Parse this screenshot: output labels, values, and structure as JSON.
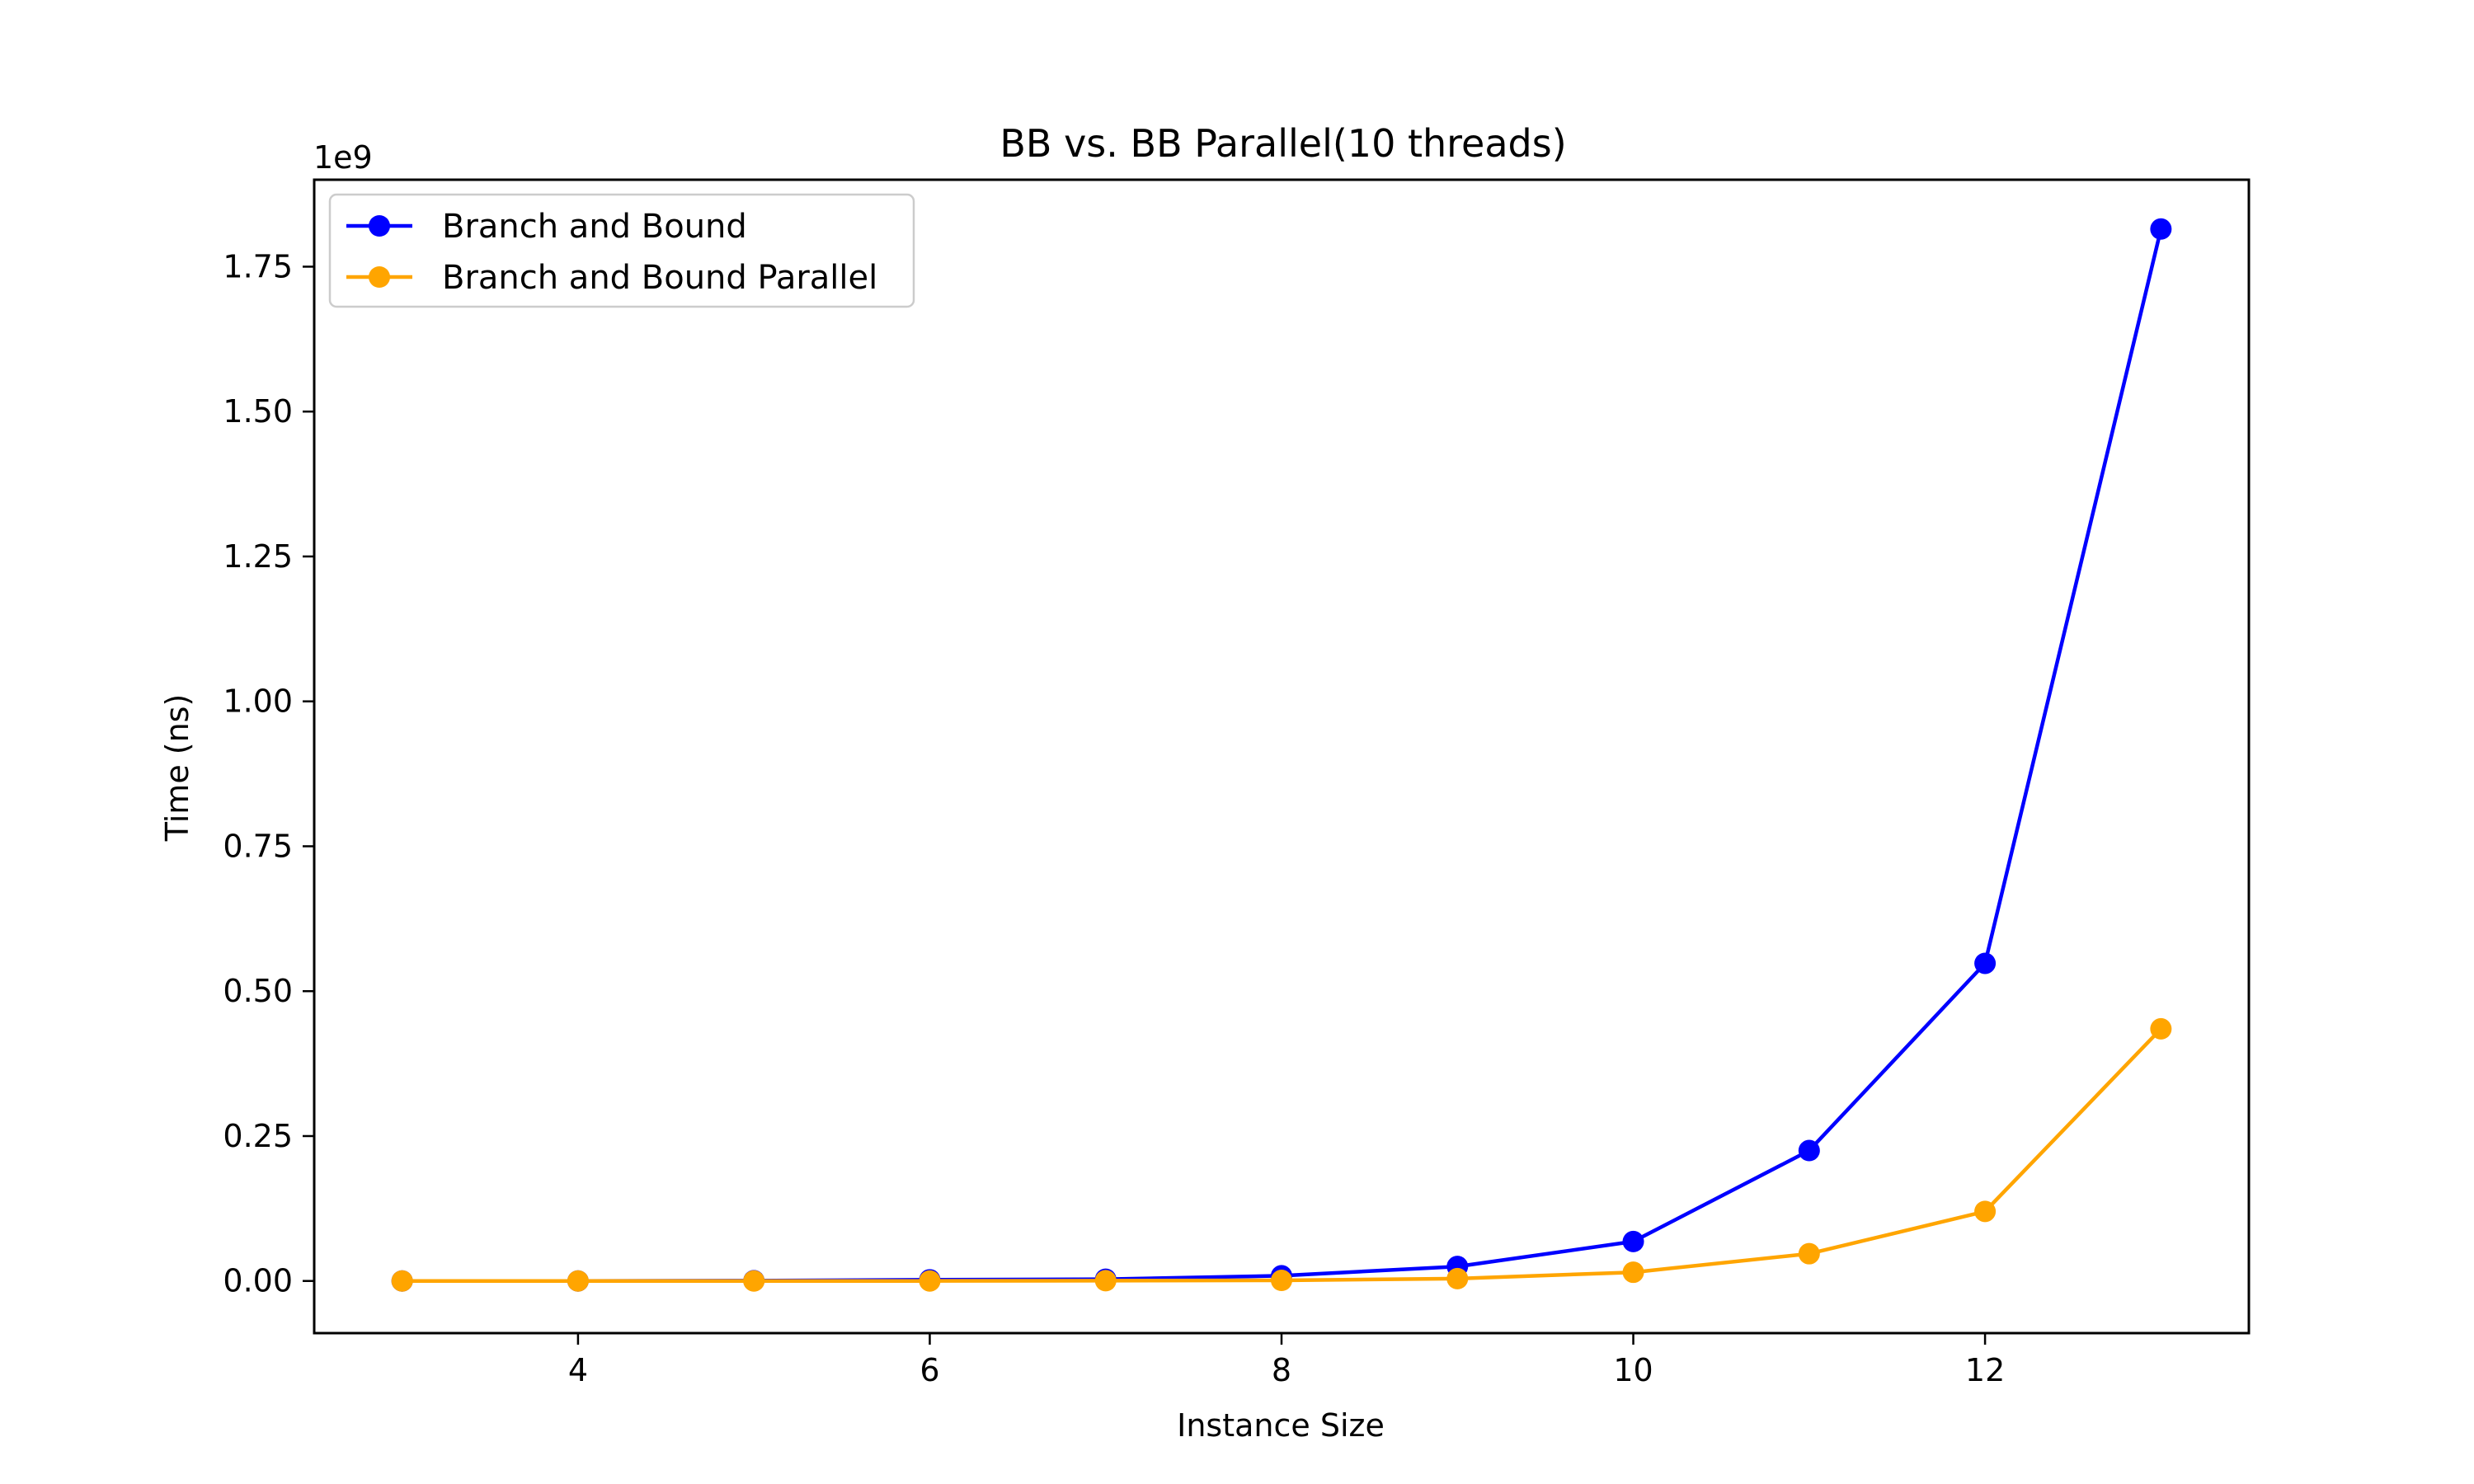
{
  "chart_data": {
    "type": "line",
    "title": "BB vs. BB Parallel(10 threads)",
    "xlabel": "Instance Size",
    "ylabel": "Time (ns)",
    "y_offset_label": "1e9",
    "x": [
      3,
      4,
      5,
      6,
      7,
      8,
      9,
      10,
      11,
      12,
      13
    ],
    "xlim": [
      2.5,
      13.5
    ],
    "ylim": [
      -0.09,
      1.9
    ],
    "x_ticks": [
      4,
      6,
      8,
      10,
      12
    ],
    "y_ticks": [
      0.0,
      0.25,
      0.5,
      0.75,
      1.0,
      1.25,
      1.5,
      1.75
    ],
    "y_tick_labels": [
      "0.00",
      "0.25",
      "0.50",
      "0.75",
      "1.00",
      "1.25",
      "1.50",
      "1.75"
    ],
    "grid": false,
    "legend_position": "top-left",
    "series": [
      {
        "name": "Branch and Bound",
        "color": "#0000ff",
        "marker": "circle",
        "values": [
          0.0,
          0.0,
          0.0005,
          0.002,
          0.003,
          0.009,
          0.025,
          0.068,
          0.225,
          0.548,
          1.815
        ]
      },
      {
        "name": "Branch and Bound Parallel",
        "color": "#ffa500",
        "marker": "circle",
        "values": [
          0.0,
          0.0,
          0.0,
          0.0,
          0.0005,
          0.001,
          0.004,
          0.015,
          0.047,
          0.12,
          0.435
        ]
      }
    ]
  }
}
